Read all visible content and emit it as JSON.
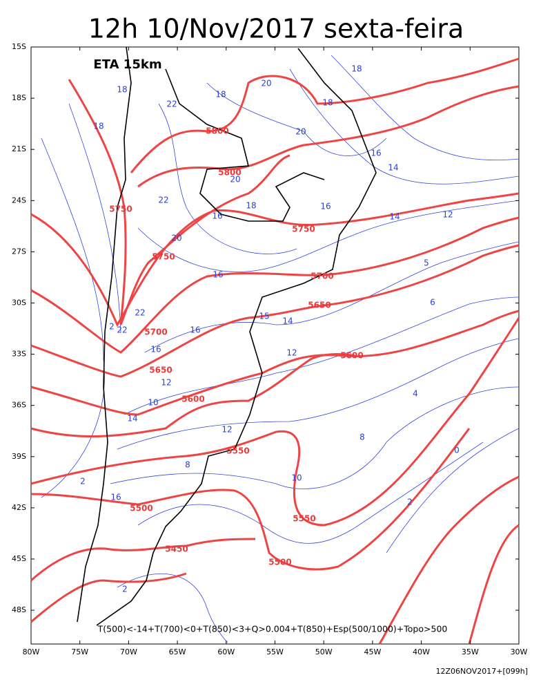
{
  "title": "12h 10/Nov/2017 sexta-feira",
  "model": "ETA 15km",
  "lat_labels": [
    "15S",
    "18S",
    "21S",
    "24S",
    "27S",
    "30S",
    "33S",
    "36S",
    "39S",
    "42S",
    "45S",
    "48S"
  ],
  "lon_labels": [
    "80W",
    "75W",
    "70W",
    "65W",
    "60W",
    "55W",
    "50W",
    "45W",
    "40W",
    "35W",
    "30W"
  ],
  "height_contours": [
    5800,
    5800,
    5750,
    5750,
    5750,
    5700,
    5700,
    5650,
    5650,
    5600,
    5600,
    5550,
    5500,
    5550,
    5450,
    5500
  ],
  "temperature_contours": [
    18,
    18,
    18,
    20,
    22,
    18,
    18,
    20,
    20,
    16,
    14,
    22,
    18,
    16,
    12,
    14,
    16,
    20,
    16,
    5,
    6,
    15,
    14,
    16,
    22,
    22,
    2,
    16,
    12,
    12,
    10,
    14,
    4,
    12,
    8,
    0,
    8,
    10,
    2,
    16,
    2,
    2
  ],
  "legend": "T(500)<-14+T(700)<0+T(850)<3+Q>0.004+T(850)+Esp(500/1000)+Topo>500",
  "run": "12Z06NOV2017+[099h]"
}
